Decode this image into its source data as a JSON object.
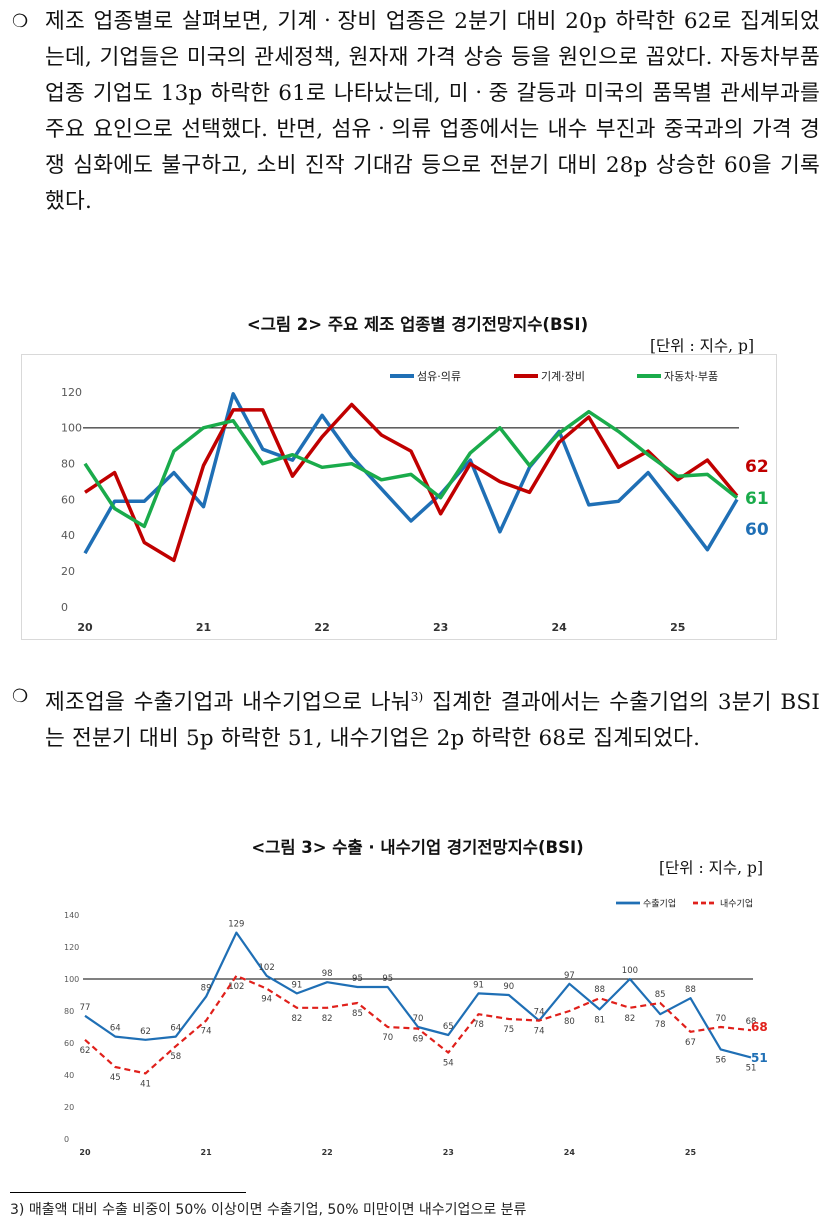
{
  "para1": {
    "bullet": "❍",
    "text": "제조 업종별로 살펴보면, 기계ㆍ장비 업종은 2분기 대비 20p 하락한 62로 집계되었는데, 기업들은 미국의 관세정책, 원자재 가격 상승 등을 원인으로 꼽았다. 자동차부품 업종 기업도 13p 하락한 61로 나타났는데, 미ㆍ중 갈등과 미국의 품목별 관세부과를 주요 요인으로 선택했다. 반면, 섬유ㆍ의류 업종에서는 내수 부진과 중국과의 가격 경쟁 심화에도 불구하고, 소비 진작 기대감 등으로 전분기 대비 28p 상승한 60을 기록했다."
  },
  "fig2": {
    "title": "<그림 2> 주요 제조 업종별 경기전망지수(BSI)",
    "unit": "[단위 : 지수, p]"
  },
  "para2": {
    "bullet": "❍",
    "text_before": "제조업을 수출기업과 내수기업으로 나눠",
    "footnote_ref": "3)",
    "text_after": " 집계한 결과에서는 수출기업의 3분기 BSI는 전분기 대비 5p 하락한 51, 내수기업은 2p 하락한 68로 집계되었다."
  },
  "fig3": {
    "title": "<그림 3> 수출 · 내수기업 경기전망지수(BSI)",
    "unit": "[단위 : 지수, p]"
  },
  "footnote": "3) 매출액 대비 수출 비중이 50% 이상이면 수출기업, 50% 미만이면 내수기업으로 분류",
  "chart_data": [
    {
      "type": "line",
      "x": [
        "20.1Q",
        "20.2Q",
        "20.3Q",
        "20.4Q",
        "21.1Q",
        "21.2Q",
        "21.3Q",
        "21.4Q",
        "22.1Q",
        "22.2Q",
        "22.3Q",
        "22.4Q",
        "23.1Q",
        "23.2Q",
        "23.3Q",
        "23.4Q",
        "24.1Q",
        "24.2Q",
        "24.3Q",
        "24.4Q",
        "25.1Q",
        "25.2Q",
        "25.3Q"
      ],
      "x_tick_labels": [
        "20",
        "21",
        "22",
        "23",
        "24",
        "25"
      ],
      "ylim": [
        0,
        120
      ],
      "y_ticks": [
        0,
        20,
        40,
        60,
        80,
        100,
        120
      ],
      "reference_line": 100,
      "legend_position": "top",
      "series": [
        {
          "name": "섬유·의류",
          "color": "#1f6fb5",
          "values": [
            30,
            59,
            59,
            75,
            56,
            119,
            88,
            82,
            107,
            84,
            66,
            48,
            63,
            82,
            42,
            78,
            98,
            57,
            59,
            75,
            54,
            32,
            60
          ]
        },
        {
          "name": "기계·장비",
          "color": "#c00000",
          "values": [
            64,
            75,
            36,
            26,
            79,
            110,
            110,
            73,
            95,
            113,
            96,
            87,
            52,
            80,
            70,
            64,
            92,
            106,
            78,
            87,
            71,
            82,
            62
          ]
        },
        {
          "name": "자동차·부품",
          "color": "#1aab4b",
          "values": [
            80,
            55,
            45,
            87,
            100,
            104,
            80,
            85,
            78,
            80,
            71,
            74,
            61,
            86,
            100,
            79,
            97,
            109,
            98,
            85,
            73,
            74,
            61
          ]
        }
      ],
      "end_labels": [
        {
          "series": "기계·장비",
          "text": "62",
          "color": "#c00000"
        },
        {
          "series": "자동차·부품",
          "text": "61",
          "color": "#1aab4b"
        },
        {
          "series": "섬유·의류",
          "text": "60",
          "color": "#1f6fb5"
        }
      ]
    },
    {
      "type": "line",
      "x": [
        "20.1Q",
        "20.2Q",
        "20.3Q",
        "20.4Q",
        "21.1Q",
        "21.2Q",
        "21.3Q",
        "21.4Q",
        "22.1Q",
        "22.2Q",
        "22.3Q",
        "22.4Q",
        "23.1Q",
        "23.2Q",
        "23.3Q",
        "23.4Q",
        "24.1Q",
        "24.2Q",
        "24.3Q",
        "24.4Q",
        "25.1Q",
        "25.2Q",
        "25.3Q"
      ],
      "x_tick_labels": [
        "20",
        "21",
        "22",
        "23",
        "24",
        "25"
      ],
      "ylim": [
        0,
        140
      ],
      "y_ticks": [
        0,
        20,
        40,
        60,
        80,
        100,
        120,
        140
      ],
      "reference_line": 100,
      "legend_position": "top-right",
      "series": [
        {
          "name": "수출기업",
          "color": "#1f6fb5",
          "style": "solid",
          "values": [
            77,
            64,
            62,
            64,
            89,
            129,
            102,
            91,
            98,
            95,
            95,
            70,
            65,
            91,
            90,
            74,
            97,
            81,
            100,
            78,
            88,
            56,
            51
          ]
        },
        {
          "name": "내수기업",
          "color": "#e0201b",
          "style": "dashed",
          "values": [
            62,
            45,
            41,
            58,
            74,
            102,
            94,
            82,
            82,
            85,
            70,
            69,
            54,
            78,
            75,
            74,
            80,
            88,
            82,
            85,
            67,
            70,
            68
          ]
        }
      ],
      "end_labels": [
        {
          "series": "내수기업",
          "text": "68",
          "color": "#e0201b"
        },
        {
          "series": "수출기업",
          "text": "51",
          "color": "#1f6fb5"
        }
      ]
    }
  ]
}
